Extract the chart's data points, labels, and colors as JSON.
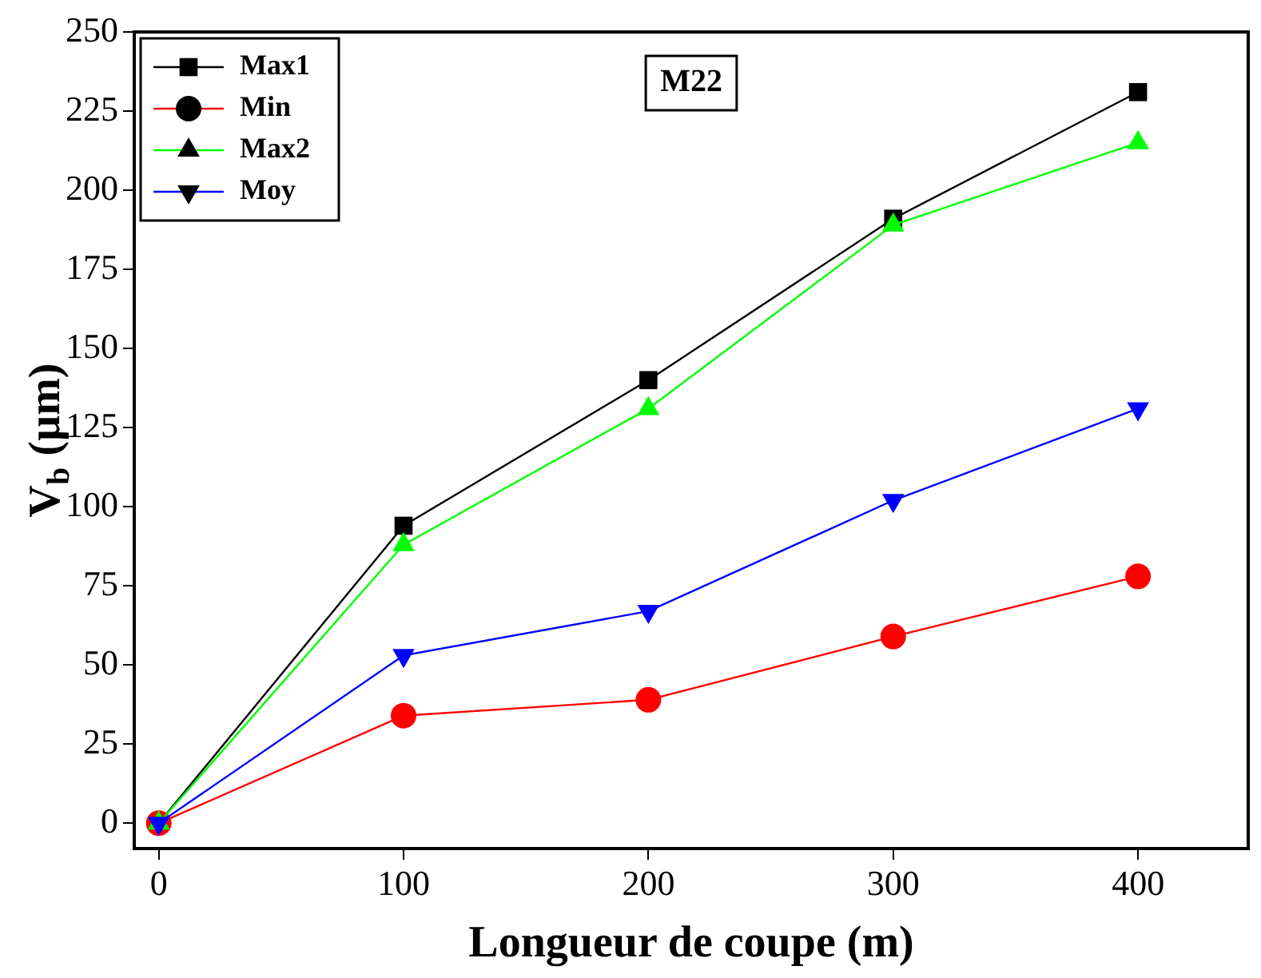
{
  "chart_data": {
    "type": "line",
    "xlabel": "Longueur de coupe (m)",
    "ylabel": "V$_{b}$ (µm)",
    "annotations": [
      "M22"
    ],
    "x": [
      0,
      100,
      200,
      300,
      400
    ],
    "series": [
      {
        "name": "Max1",
        "color": "#000000",
        "marker": "square",
        "values": [
          0,
          94,
          140,
          191,
          231
        ]
      },
      {
        "name": "Min",
        "color": "#ff0000",
        "marker": "circle",
        "values": [
          0,
          34,
          39,
          59,
          78
        ]
      },
      {
        "name": "Max2",
        "color": "#00ff00",
        "marker": "triangle",
        "values": [
          0,
          88,
          131,
          189,
          215
        ]
      },
      {
        "name": "Moy",
        "color": "#0000ff",
        "marker": "triangle-down",
        "values": [
          0,
          53,
          67,
          102,
          131
        ]
      }
    ],
    "xlim": [
      -10,
      445
    ],
    "xticks": [
      0,
      100,
      200,
      300,
      400
    ],
    "ylim": [
      -8,
      250
    ],
    "yticks": [
      0,
      25,
      50,
      75,
      100,
      125,
      150,
      175,
      200,
      225,
      250
    ],
    "grid": false,
    "legend": "top left"
  }
}
